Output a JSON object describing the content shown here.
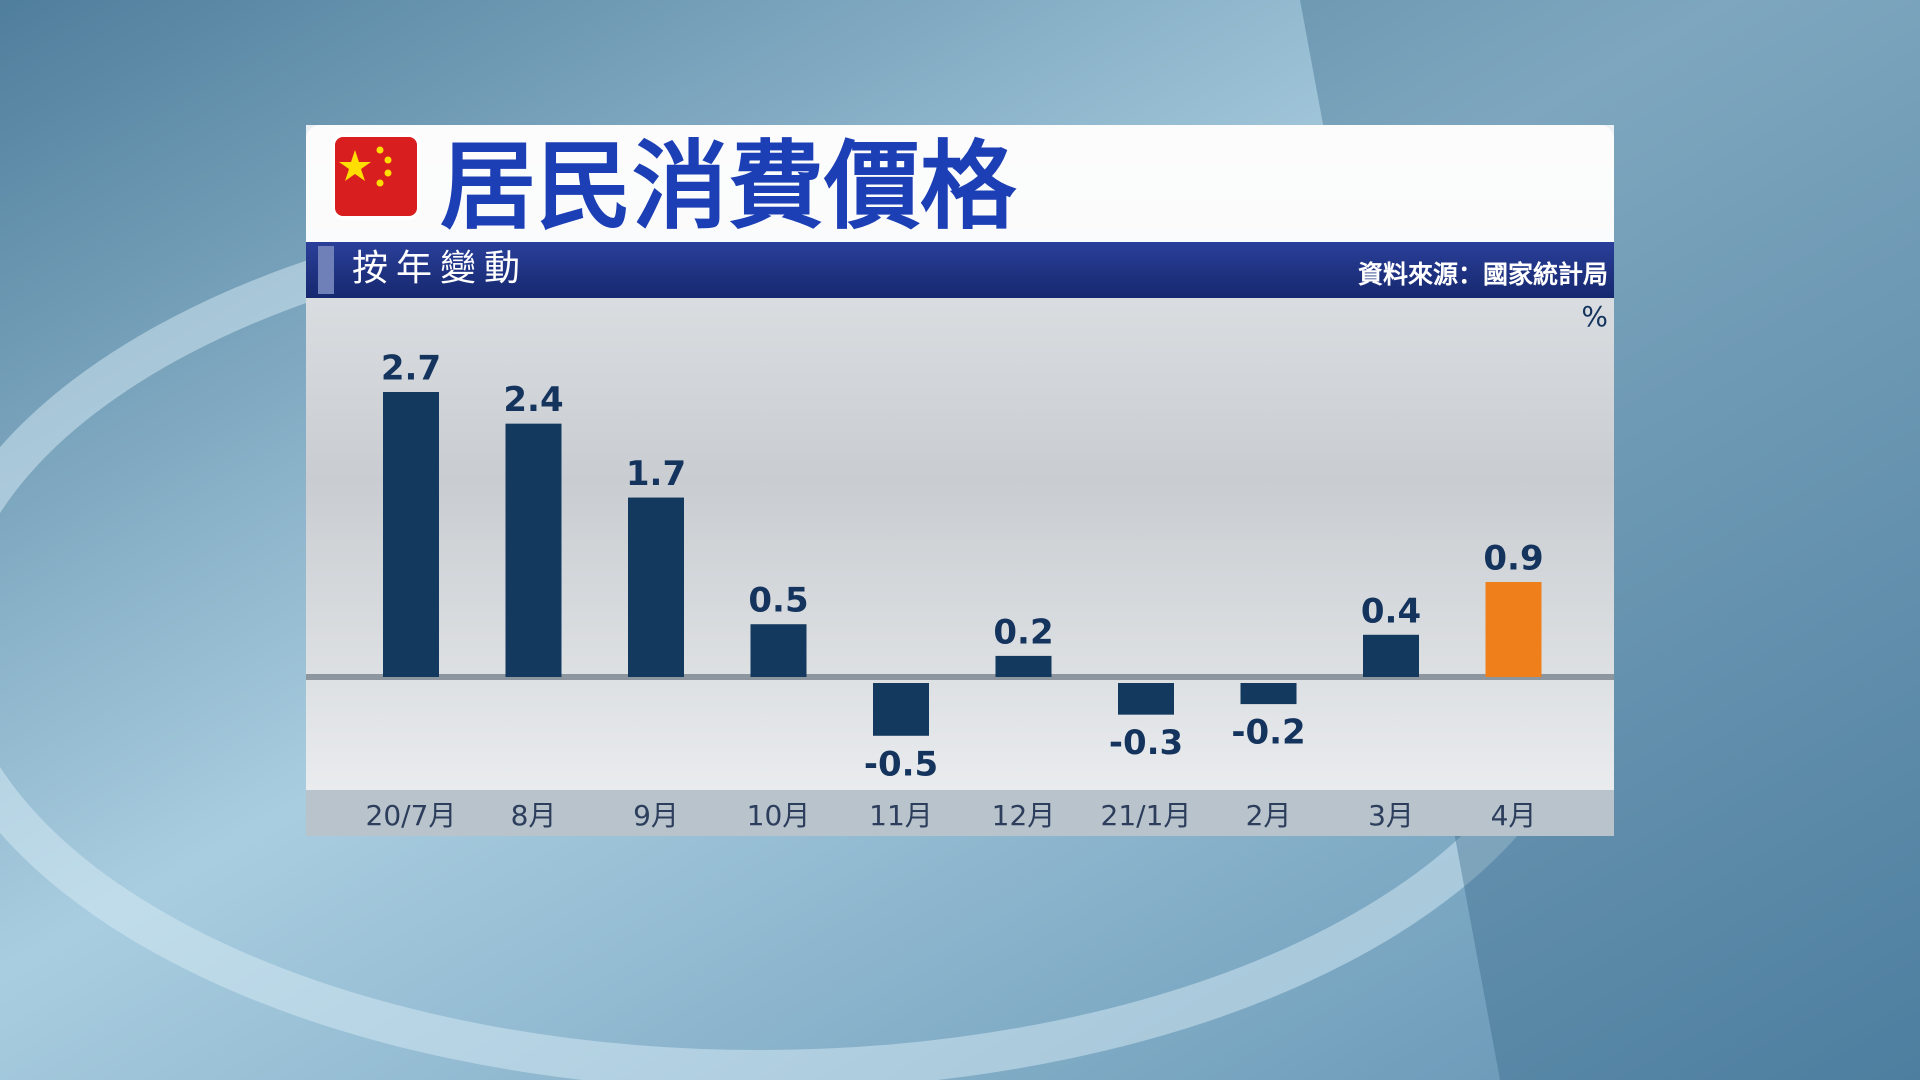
{
  "chart_data": {
    "type": "bar",
    "title": "居民消費價格",
    "subtitle": "按年變動",
    "source": "資料來源：國家統計局",
    "unit": "%",
    "categories": [
      "20/7月",
      "8月",
      "9月",
      "10月",
      "11月",
      "12月",
      "21/1月",
      "2月",
      "3月",
      "4月"
    ],
    "values": [
      2.7,
      2.4,
      1.7,
      0.5,
      -0.5,
      0.2,
      -0.3,
      -0.2,
      0.4,
      0.9
    ],
    "colors": [
      "#13395f",
      "#13395f",
      "#13395f",
      "#13395f",
      "#13395f",
      "#13395f",
      "#13395f",
      "#13395f",
      "#13395f",
      "#ef7f1a"
    ]
  }
}
